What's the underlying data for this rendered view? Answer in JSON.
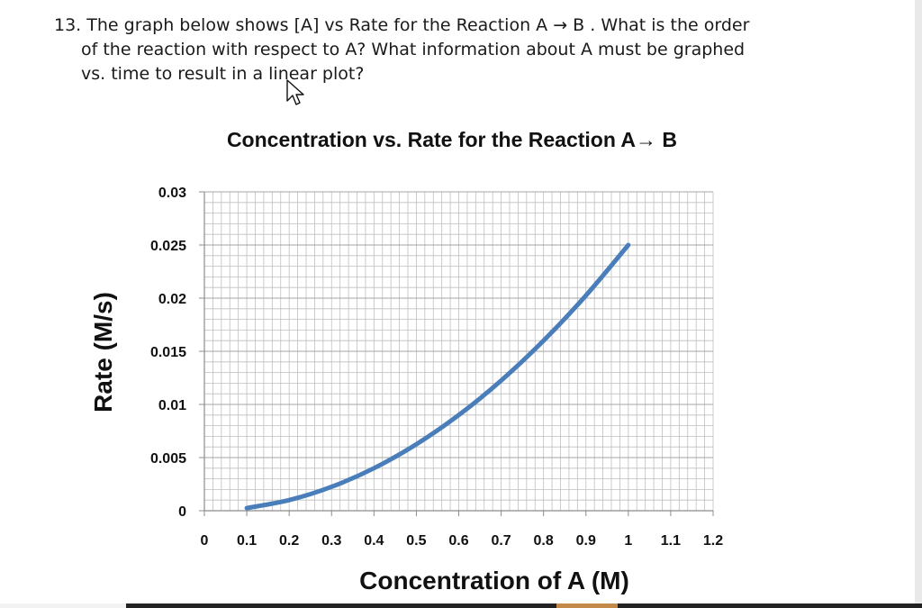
{
  "question": {
    "line1": "13. The graph below shows [A] vs Rate for the Reaction A → B . What is the order",
    "line2": "of the reaction with respect to A?  What information about A must be graphed",
    "line3": "vs. time to result in a linear plot?"
  },
  "chart_data": {
    "type": "line",
    "title": "Concentration vs. Rate for the Reaction A→ B",
    "xlabel": "Concentration of A (M)",
    "ylabel": "Rate (M/s)",
    "xlim": [
      0,
      1.2
    ],
    "ylim": [
      0,
      0.03
    ],
    "x_ticks": [
      "0",
      "0.1",
      "0.2",
      "0.3",
      "0.4",
      "0.5",
      "0.6",
      "0.7",
      "0.8",
      "0.9",
      "1",
      "1.1",
      "1.2"
    ],
    "y_ticks": [
      "0",
      "0.005",
      "0.01",
      "0.015",
      "0.02",
      "0.025",
      "0.03"
    ],
    "grid": true,
    "series": [
      {
        "color": "#4a7ebb",
        "x": [
          0.1,
          0.2,
          0.3,
          0.4,
          0.5,
          0.6,
          0.7,
          0.8,
          0.9,
          1.0
        ],
        "y": [
          0.00025,
          0.001,
          0.00225,
          0.004,
          0.00625,
          0.009,
          0.01225,
          0.016,
          0.02025,
          0.025
        ]
      }
    ]
  },
  "colors": {
    "line": "#4a7ebb",
    "grid": "#bfbfbf",
    "text": "#111111"
  }
}
